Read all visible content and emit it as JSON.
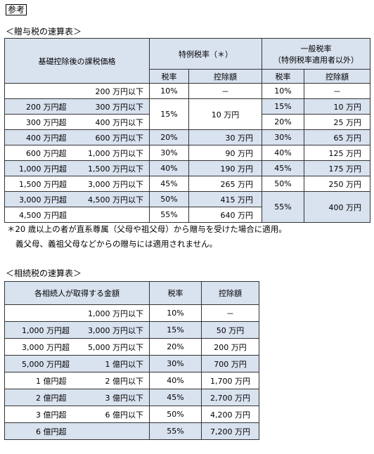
{
  "ref_label": "参考",
  "gift": {
    "title": "＜贈与税の速算表＞",
    "head": {
      "base": "基礎控除後の課税価格",
      "special": "特例税率（＊）",
      "general_1": "一般税率",
      "general_2": "（特例税率適用者以外）",
      "rate": "税率",
      "deduction": "控除額"
    },
    "rows": [
      {
        "from": "",
        "to": "200 万円以下",
        "sp_rate": "10%",
        "sp_ded": "－",
        "ge_rate": "10%",
        "ge_ded": "－"
      },
      {
        "from": "200 万円超",
        "to": "300 万円以下",
        "sp_rate": "15%",
        "sp_ded": "10 万円",
        "ge_rate": "15%",
        "ge_ded": "10 万円"
      },
      {
        "from": "300 万円超",
        "to": "400 万円以下",
        "sp_rate": "",
        "sp_ded": "",
        "ge_rate": "20%",
        "ge_ded": "25 万円"
      },
      {
        "from": "400 万円超",
        "to": "600 万円以下",
        "sp_rate": "20%",
        "sp_ded": "30 万円",
        "ge_rate": "30%",
        "ge_ded": "65 万円"
      },
      {
        "from": "600 万円超",
        "to": "1,000 万円以下",
        "sp_rate": "30%",
        "sp_ded": "90 万円",
        "ge_rate": "40%",
        "ge_ded": "125 万円"
      },
      {
        "from": "1,000 万円超",
        "to": "1,500 万円以下",
        "sp_rate": "40%",
        "sp_ded": "190 万円",
        "ge_rate": "45%",
        "ge_ded": "175 万円"
      },
      {
        "from": "1,500 万円超",
        "to": "3,000 万円以下",
        "sp_rate": "45%",
        "sp_ded": "265 万円",
        "ge_rate": "50%",
        "ge_ded": "250 万円"
      },
      {
        "from": "3,000 万円超",
        "to": "4,500 万円以下",
        "sp_rate": "50%",
        "sp_ded": "415 万円",
        "ge_rate": "55%",
        "ge_ded": "400 万円"
      },
      {
        "from": "4,500 万円超",
        "to": "",
        "sp_rate": "55%",
        "sp_ded": "640 万円",
        "ge_rate": "",
        "ge_ded": ""
      }
    ],
    "note_1": "＊20 歳以上の者が直系尊属（父母や祖父母）から贈与を受けた場合に適用。",
    "note_2": "義父母、義祖父母などからの贈与には適用されません。"
  },
  "inherit": {
    "title": "＜相続税の速算表＞",
    "head": {
      "amount": "各相続人が取得する金額",
      "rate": "税率",
      "deduction": "控除額"
    },
    "rows": [
      {
        "from": "",
        "to": "1,000 万円以下",
        "rate": "10%",
        "ded": "－"
      },
      {
        "from": "1,000 万円超",
        "to": "3,000 万円以下",
        "rate": "15%",
        "ded": "50 万円"
      },
      {
        "from": "3,000 万円超",
        "to": "5,000 万円以下",
        "rate": "20%",
        "ded": "200 万円"
      },
      {
        "from": "5,000 万円超",
        "to": "1 億円以下",
        "rate": "30%",
        "ded": "700 万円"
      },
      {
        "from": "1 億円超",
        "to": "2 億円以下",
        "rate": "40%",
        "ded": "1,700 万円"
      },
      {
        "from": "2 億円超",
        "to": "3 億円以下",
        "rate": "45%",
        "ded": "2,700 万円"
      },
      {
        "from": "3 億円超",
        "to": "6 億円以下",
        "rate": "50%",
        "ded": "4,200 万円"
      },
      {
        "from": "6 億円超",
        "to": "",
        "rate": "55%",
        "ded": "7,200 万円"
      }
    ]
  }
}
